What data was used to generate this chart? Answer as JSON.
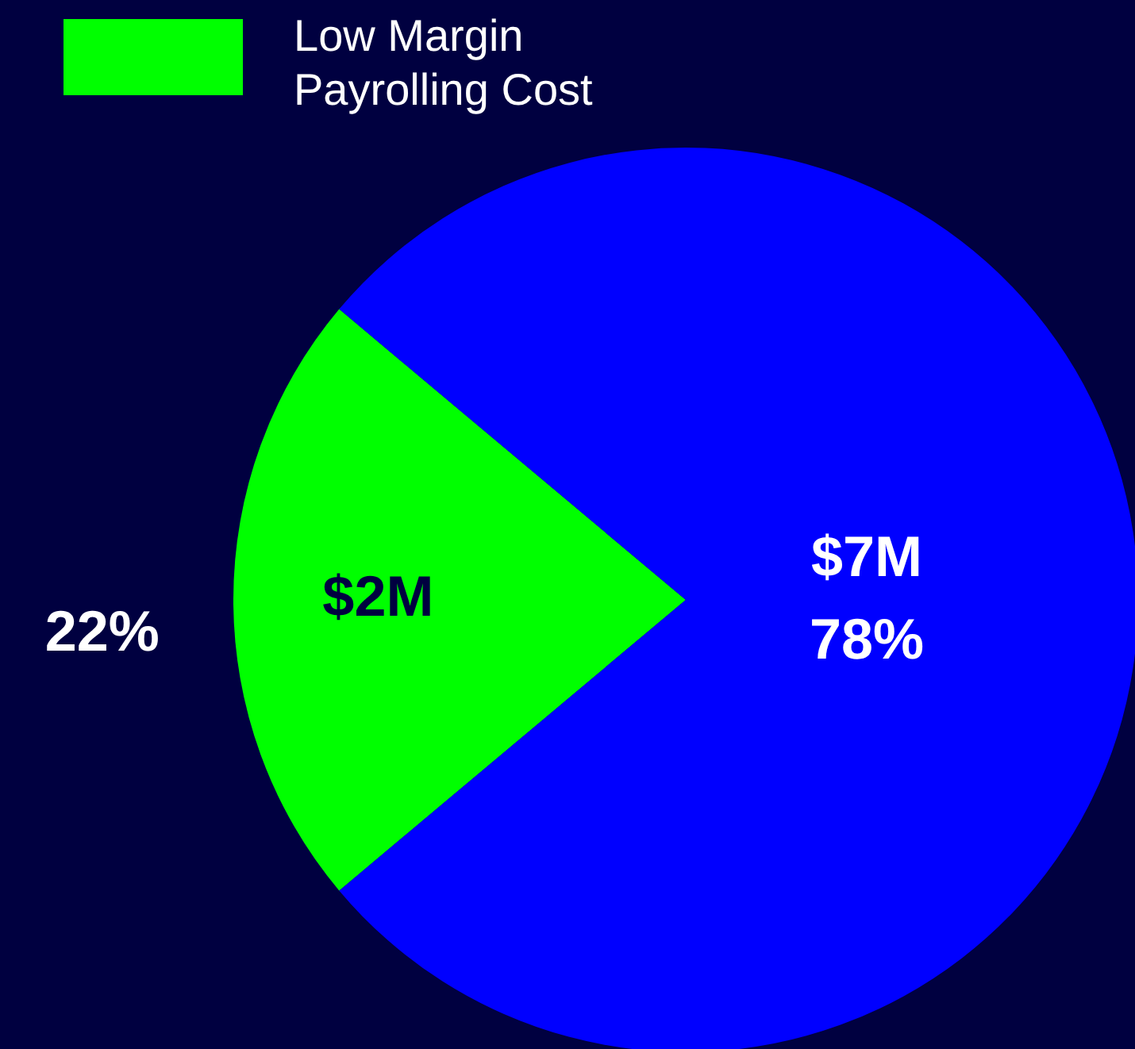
{
  "chart_data": {
    "type": "pie",
    "categories": [
      "Low Margin Payrolling Cost",
      null
    ],
    "values": [
      2,
      7
    ],
    "colors": [
      "#00ff00",
      "#0000ff"
    ],
    "value_labels": [
      "$2M",
      "$7M"
    ],
    "annotations": [
      "22%",
      "78%"
    ],
    "legend": "top left"
  }
}
